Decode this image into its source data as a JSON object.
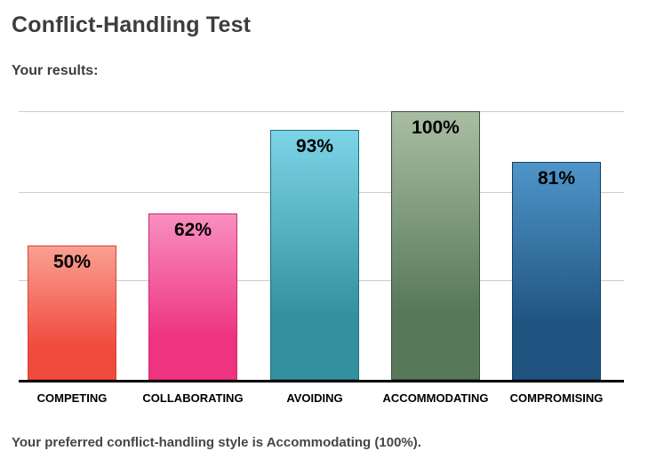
{
  "page": {
    "title": "Conflict-Handling Test",
    "results_heading": "Your results:",
    "summary": "Your preferred conflict-handling style is Accommodating (100%)."
  },
  "colors": {
    "title_text": "#3d3d3d",
    "summary_text": "#464646",
    "axis_line": "#000000",
    "gridline": "#cccccc",
    "value_label_text": "#000000",
    "category_label_text": "#000000"
  },
  "chart_data": {
    "type": "bar",
    "title": "Your results:",
    "categories": [
      "COMPETING",
      "COLLABORATING",
      "AVOIDING",
      "ACCOMMODATING",
      "COMPROMISING"
    ],
    "values": [
      50,
      62,
      93,
      100,
      81
    ],
    "value_labels": [
      "50%",
      "62%",
      "93%",
      "100%",
      "81%"
    ],
    "xlabel": "",
    "ylabel": "",
    "ylim": [
      0,
      100
    ],
    "grid": true,
    "gridline_values": [
      100,
      70,
      37
    ],
    "legend_position": "none",
    "bar_gradients": [
      {
        "top": "#f9a092",
        "bottom": "#f14b3e",
        "border": "#d84237"
      },
      {
        "top": "#f98fc0",
        "bottom": "#ee3381",
        "border": "#cc2a6d"
      },
      {
        "top": "#7cd5e6",
        "bottom": "#33909f",
        "border": "#1e6d7d"
      },
      {
        "top": "#a9bda2",
        "bottom": "#577959",
        "border": "#39513b"
      },
      {
        "top": "#4f95c9",
        "bottom": "#1f5480",
        "border": "#163e60"
      }
    ]
  }
}
